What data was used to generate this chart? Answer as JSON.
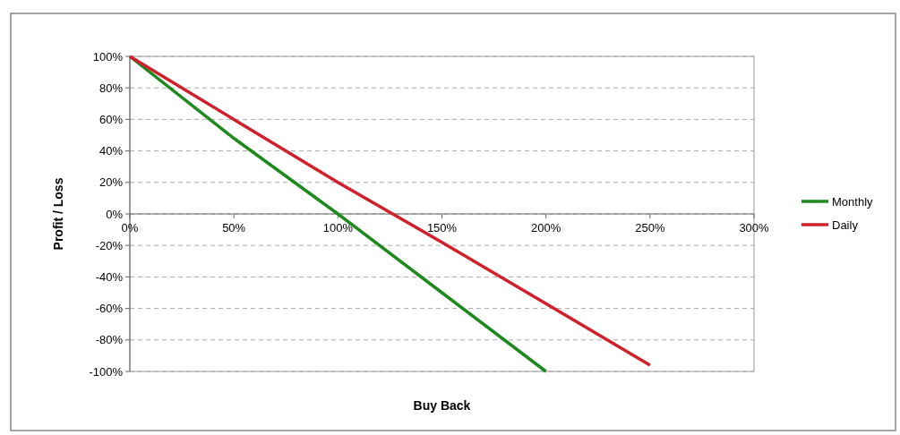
{
  "chart_data": {
    "type": "line",
    "xlabel": "Buy Back",
    "ylabel": "Profit / Loss",
    "xlim": [
      0,
      300
    ],
    "xticks": [
      {
        "value": 0,
        "label": "0%"
      },
      {
        "value": 50,
        "label": "50%"
      },
      {
        "value": 100,
        "label": "100%"
      },
      {
        "value": 150,
        "label": "150%"
      },
      {
        "value": 200,
        "label": "200%"
      },
      {
        "value": 250,
        "label": "250%"
      },
      {
        "value": 300,
        "label": "300%"
      }
    ],
    "ylim": [
      -100,
      100
    ],
    "yticks": [
      {
        "value": -100,
        "label": "-100%"
      },
      {
        "value": -80,
        "label": "-80%"
      },
      {
        "value": -60,
        "label": "-60%"
      },
      {
        "value": -40,
        "label": "-40%"
      },
      {
        "value": -20,
        "label": "-20%"
      },
      {
        "value": 0,
        "label": "0%"
      },
      {
        "value": 20,
        "label": "20%"
      },
      {
        "value": 40,
        "label": "40%"
      },
      {
        "value": 60,
        "label": "60%"
      },
      {
        "value": 80,
        "label": "80%"
      },
      {
        "value": 100,
        "label": "100%"
      }
    ],
    "grid": "y",
    "legend": "right",
    "marker": "none",
    "line_style": "solid",
    "series": [
      {
        "name": "Monthly",
        "color": "#1e8a1e",
        "x": [
          0,
          50,
          100,
          150,
          200
        ],
        "values": [
          100,
          48,
          0,
          -50,
          -100
        ]
      },
      {
        "name": "Daily",
        "color": "#d0202a",
        "x": [
          0,
          50,
          100,
          150,
          200,
          250
        ],
        "values": [
          100,
          60,
          20,
          -18,
          -57,
          -96
        ]
      }
    ]
  }
}
